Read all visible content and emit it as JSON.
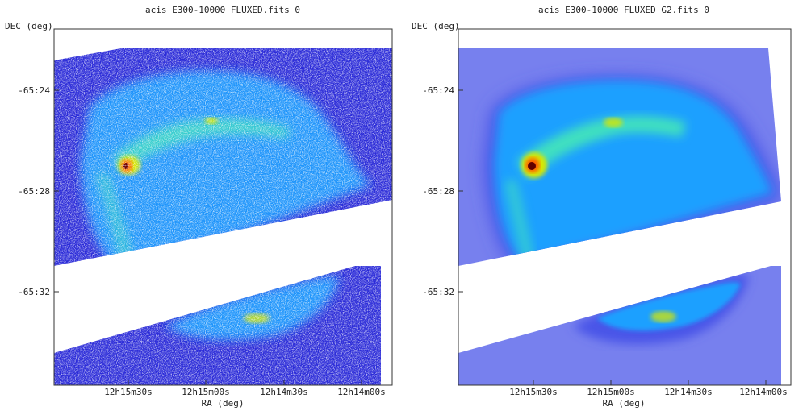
{
  "chart_data": [
    {
      "type": "heatmap",
      "title": "acis_E300-10000_FLUXED.fits_0",
      "xlabel": "RA (deg)",
      "ylabel": "DEC (deg)",
      "x_ticks": [
        "12h15m30s",
        "12h15m00s",
        "12h14m30s",
        "12h14m00s"
      ],
      "y_ticks": [
        "-65:24",
        "-65:28",
        "-65:32"
      ],
      "rendering": "raw pixels (noisy)",
      "colormap": [
        "#ffffff",
        "#2b2bd8",
        "#1fa0ff",
        "#3fe0c0",
        "#d8e800",
        "#ff5a00",
        "#700000"
      ],
      "gap_color": "#ffffff"
    },
    {
      "type": "heatmap",
      "title": "acis_E300-10000_FLUXED_G2.fits_0",
      "xlabel": "RA (deg)",
      "ylabel": "DEC (deg)",
      "x_ticks": [
        "12h15m30s",
        "12h15m00s",
        "12h14m30s",
        "12h14m00s"
      ],
      "y_ticks": [
        "-65:24",
        "-65:28",
        "-65:32"
      ],
      "rendering": "gaussian smoothed",
      "colormap": [
        "#ffffff",
        "#4a55e8",
        "#1fa0ff",
        "#3fe0c0",
        "#d8e800",
        "#ff5a00",
        "#600000"
      ],
      "gap_color": "#ffffff"
    }
  ]
}
